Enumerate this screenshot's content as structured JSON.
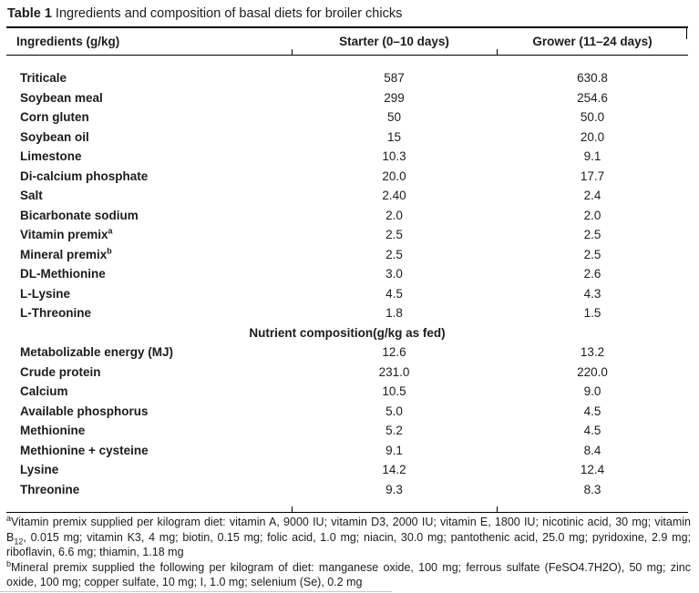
{
  "caption": {
    "label": "Table 1",
    "text": "Ingredients and composition of basal diets for broiler chicks"
  },
  "table": {
    "columns": [
      "Ingredients (g/kg)",
      "Starter (0–10 days)",
      "Grower (11–24 days)"
    ],
    "ingredient_rows": [
      {
        "label": "Triticale",
        "starter": "587",
        "grower": "630.8"
      },
      {
        "label": "Soybean meal",
        "starter": "299",
        "grower": "254.6"
      },
      {
        "label": "Corn gluten",
        "starter": "50",
        "grower": "50.0"
      },
      {
        "label": "Soybean oil",
        "starter": "15",
        "grower": "20.0"
      },
      {
        "label": "Limestone",
        "starter": "10.3",
        "grower": "9.1"
      },
      {
        "label": "Di-calcium phosphate",
        "starter": "20.0",
        "grower": "17.7"
      },
      {
        "label": "Salt",
        "starter": "2.40",
        "grower": "2.4"
      },
      {
        "label": "Bicarbonate sodium",
        "starter": "2.0",
        "grower": "2.0"
      },
      {
        "label": "Vitamin premix",
        "sup": "a",
        "starter": "2.5",
        "grower": "2.5"
      },
      {
        "label": "Mineral premix",
        "sup": "b",
        "starter": "2.5",
        "grower": "2.5"
      },
      {
        "label": "DL-Methionine",
        "starter": "3.0",
        "grower": "2.6"
      },
      {
        "label": "L-Lysine",
        "starter": "4.5",
        "grower": "4.3"
      },
      {
        "label": "L-Threonine",
        "starter": "1.8",
        "grower": "1.5"
      }
    ],
    "section_header": "Nutrient composition(g/kg as fed)",
    "nutrient_rows": [
      {
        "label": "Metabolizable energy (MJ)",
        "starter": "12.6",
        "grower": "13.2"
      },
      {
        "label": "Crude protein",
        "starter": "231.0",
        "grower": "220.0"
      },
      {
        "label": "Calcium",
        "starter": "10.5",
        "grower": "9.0"
      },
      {
        "label": "Available phosphorus",
        "starter": "5.0",
        "grower": "4.5"
      },
      {
        "label": "Methionine",
        "starter": "5.2",
        "grower": "4.5"
      },
      {
        "label": "Methionine + cysteine",
        "starter": "9.1",
        "grower": "8.4"
      },
      {
        "label": "Lysine",
        "starter": "14.2",
        "grower": "12.4"
      },
      {
        "label": "Threonine",
        "starter": "9.3",
        "grower": "8.3"
      }
    ]
  },
  "footnotes": {
    "a": {
      "marker": "a",
      "text_before_sub": "Vitamin premix supplied per kilogram diet: vitamin A, 9000 IU; vitamin D3, 2000 IU; vitamin E, 1800 IU; nicotinic acid, 30 mg; vitamin B",
      "sub": "12",
      "text_after_sub": ", 0.015 mg; vitamin K3, 4 mg; biotin, 0.15 mg; folic acid, 1.0 mg; niacin, 30.0 mg; pantothenic acid, 25.0 mg; pyridoxine, 2.9 mg; riboflavin, 6.6 mg; thiamin, 1.18 mg"
    },
    "b": {
      "marker": "b",
      "text": "Mineral premix supplied the following per kilogram of diet: manganese oxide, 100 mg; ferrous sulfate (FeSO4.7H2O), 50 mg; zinc oxide, 100 mg; copper sulfate, 10 mg; I, 1.0 mg; selenium (Se), 0.2 mg"
    }
  }
}
